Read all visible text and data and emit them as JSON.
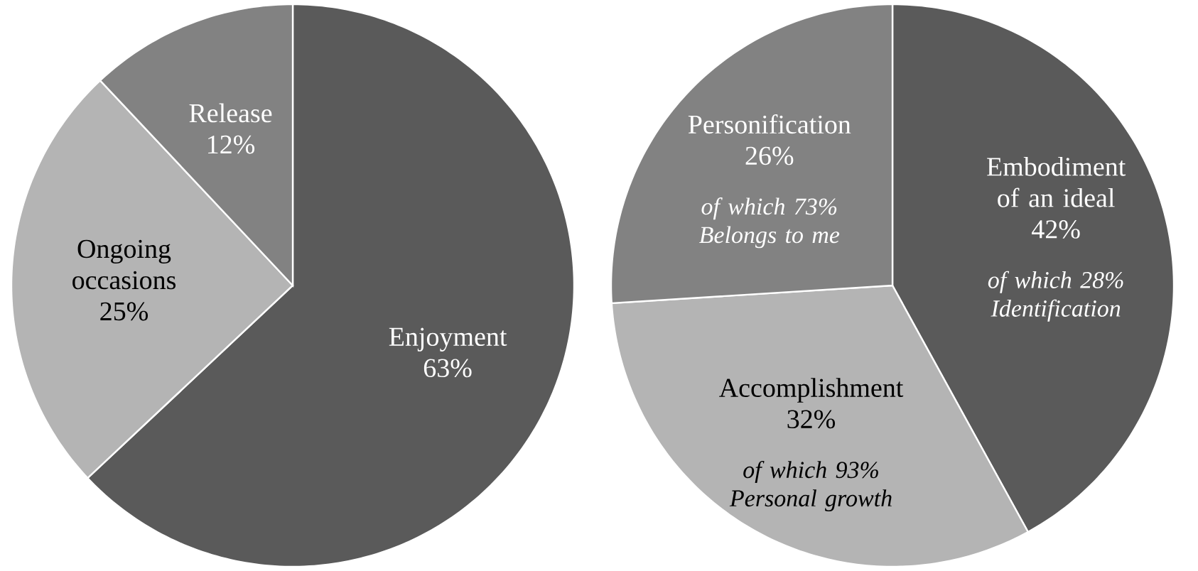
{
  "chart_data": [
    {
      "type": "pie",
      "categories": [
        "Enjoyment",
        "Ongoing occasions",
        "Release"
      ],
      "values": [
        63,
        25,
        12
      ],
      "value_labels": [
        "63%",
        "25%",
        "12%"
      ],
      "colors": [
        "#5a5a5a",
        "#b4b4b4",
        "#828282"
      ]
    },
    {
      "type": "pie",
      "categories": [
        "Embodiment of an ideal",
        "Accomplishment",
        "Personification"
      ],
      "values": [
        42,
        32,
        26
      ],
      "value_labels": [
        "42%",
        "32%",
        "26%"
      ],
      "colors": [
        "#5a5a5a",
        "#b4b4b4",
        "#828282"
      ],
      "annotations": [
        "of which 28% Identification",
        "of which 93% Personal growth",
        "of which 73% Belongs to me"
      ]
    }
  ]
}
